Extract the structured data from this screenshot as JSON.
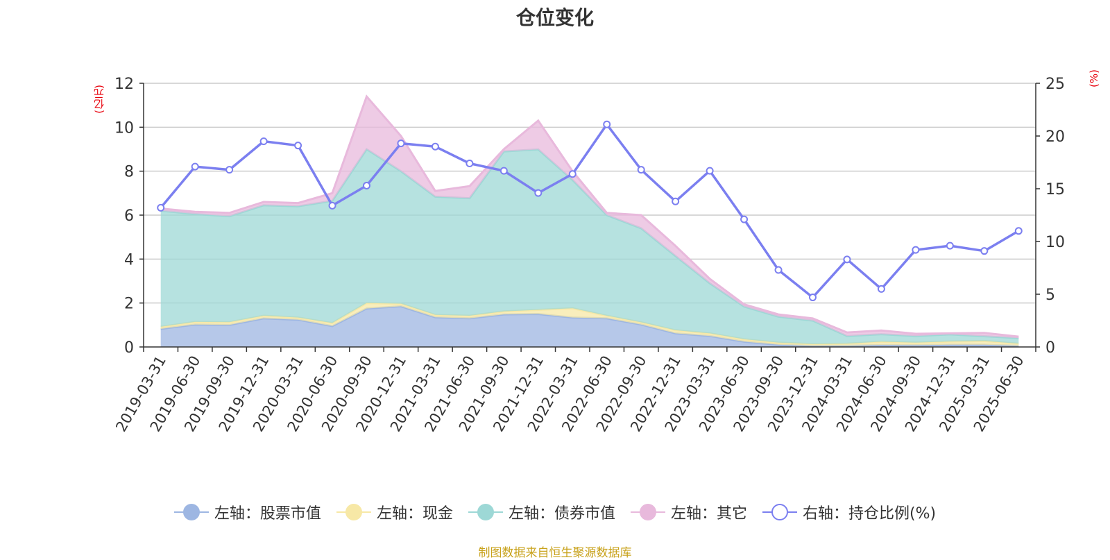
{
  "chart_data": {
    "type": "area",
    "title": "仓位变化",
    "y_left_unit": "(亿元)",
    "y_right_unit": "(%)",
    "y_left_ticks": [
      "0",
      "2",
      "4",
      "6",
      "8",
      "10",
      "12"
    ],
    "y_right_ticks": [
      "0",
      "5",
      "10",
      "15",
      "20",
      "25"
    ],
    "ylim_left": [
      0,
      12
    ],
    "ylim_right": [
      0,
      25
    ],
    "grid": true,
    "legend_position": "bottom",
    "categories": [
      "2019-03-31",
      "2019-06-30",
      "2019-09-30",
      "2019-12-31",
      "2020-03-31",
      "2020-06-30",
      "2020-09-30",
      "2020-12-31",
      "2021-03-31",
      "2021-06-30",
      "2021-09-30",
      "2021-12-31",
      "2022-03-31",
      "2022-06-30",
      "2022-09-30",
      "2022-12-31",
      "2023-03-31",
      "2023-06-30",
      "2023-09-30",
      "2023-12-31",
      "2024-03-31",
      "2024-06-30",
      "2024-09-30",
      "2024-12-31",
      "2025-03-31",
      "2025-06-30"
    ],
    "series": [
      {
        "name": "左轴：股票市值",
        "axis": "left",
        "kind": "area",
        "color": "#9db6e2",
        "values": [
          0.82,
          1.02,
          1.0,
          1.3,
          1.24,
          0.95,
          1.75,
          1.85,
          1.35,
          1.3,
          1.48,
          1.5,
          1.34,
          1.3,
          1.02,
          0.62,
          0.5,
          0.24,
          0.1,
          0.05,
          0.05,
          0.09,
          0.08,
          0.1,
          0.1,
          0.05
        ]
      },
      {
        "name": "左轴：现金",
        "axis": "left",
        "kind": "area",
        "color": "#f7e8a6",
        "values": [
          0.1,
          0.12,
          0.13,
          0.12,
          0.1,
          0.14,
          0.25,
          0.12,
          0.11,
          0.12,
          0.14,
          0.19,
          0.42,
          0.12,
          0.1,
          0.14,
          0.12,
          0.11,
          0.1,
          0.08,
          0.1,
          0.15,
          0.12,
          0.15,
          0.17,
          0.1
        ]
      },
      {
        "name": "左轴：债券市值",
        "axis": "left",
        "kind": "area",
        "color": "#9dd8d6",
        "values": [
          5.28,
          4.91,
          4.82,
          5.03,
          5.06,
          5.56,
          7.0,
          6.03,
          5.38,
          5.35,
          7.28,
          7.3,
          5.84,
          4.58,
          4.28,
          3.38,
          2.28,
          1.49,
          1.18,
          1.07,
          0.35,
          0.34,
          0.3,
          0.32,
          0.22,
          0.25
        ]
      },
      {
        "name": "左轴：其它",
        "axis": "left",
        "kind": "area",
        "color": "#e8b9dc",
        "values": [
          0.1,
          0.1,
          0.15,
          0.15,
          0.15,
          0.35,
          2.4,
          1.6,
          0.26,
          0.55,
          0.1,
          1.31,
          0.4,
          0.1,
          0.6,
          0.46,
          0.2,
          0.1,
          0.1,
          0.1,
          0.16,
          0.17,
          0.1,
          0.05,
          0.15,
          0.07
        ]
      },
      {
        "name": "右轴：持仓比例(%)",
        "axis": "right",
        "kind": "line",
        "color": "#7b7ff0",
        "values": [
          13.2,
          17.1,
          16.8,
          19.5,
          19.1,
          13.4,
          15.3,
          19.3,
          19.0,
          17.4,
          16.7,
          14.6,
          16.4,
          21.1,
          16.8,
          13.8,
          16.7,
          12.1,
          7.3,
          4.7,
          8.3,
          5.5,
          9.2,
          9.6,
          9.1,
          11.0
        ]
      }
    ]
  },
  "source_text": "制图数据来自恒生聚源数据库"
}
